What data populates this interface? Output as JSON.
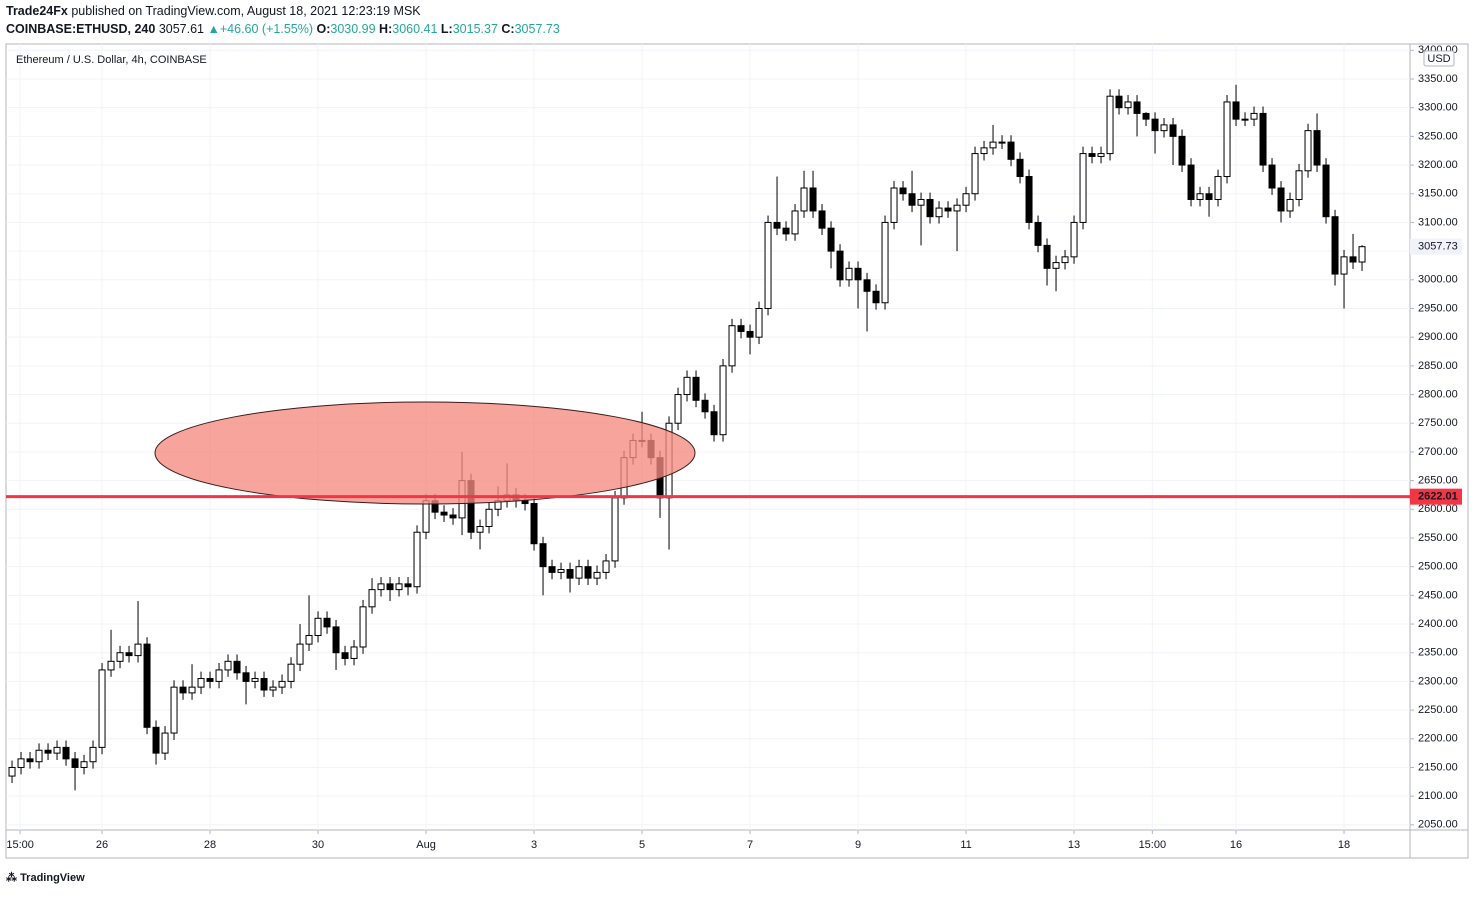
{
  "header": {
    "author": "Trade24Fx",
    "published": "published on TradingView.com, August 18, 2021 12:23:19 MSK",
    "symbol": "COINBASE:ETHUSD, 240",
    "last": "3057.61",
    "arrow": "▲",
    "change": "+46.60 (+1.55%)",
    "o_label": "O:",
    "o": "3030.99",
    "h_label": "H:",
    "h": "3060.41",
    "l_label": "L:",
    "l": "3015.37",
    "c_label": "C:",
    "c": "3057.73"
  },
  "footer": {
    "brand": "TradingView"
  },
  "chart_data": {
    "type": "candlestick",
    "title": "Ethereum / U.S. Dollar, 4h, COINBASE",
    "currency": "USD",
    "up_color": "#ffffff",
    "down_color": "#000000",
    "line_color": "#f23645",
    "grid": true,
    "open": [
      2135,
      2150,
      2165,
      2160,
      2180,
      2175,
      2185,
      2165,
      2150,
      2160,
      2185,
      2320,
      2335,
      2350,
      2345,
      2365,
      2220,
      2175,
      2210,
      2290,
      2280,
      2290,
      2305,
      2300,
      2320,
      2335,
      2315,
      2300,
      2305,
      2285,
      2290,
      2300,
      2330,
      2365,
      2380,
      2410,
      2395,
      2350,
      2340,
      2360,
      2430,
      2460,
      2470,
      2460,
      2470,
      2465,
      2560,
      2615,
      2595,
      2590,
      2585,
      2650,
      2560,
      2570,
      2600,
      2615,
      2625,
      2615,
      2610,
      2540,
      2500,
      2490,
      2495,
      2480,
      2500,
      2480,
      2490,
      2510,
      2620,
      2690,
      2720,
      2720,
      2690,
      2620,
      2750,
      2800,
      2830,
      2790,
      2770,
      2730,
      2850,
      2920,
      2910,
      2900,
      2950,
      3100,
      3090,
      3080,
      3120,
      3160,
      3120,
      3090,
      3050,
      3000,
      3020,
      3000,
      2980,
      2960,
      3100,
      3160,
      3150,
      3130,
      3140,
      3110,
      3125,
      3120,
      3130,
      3150,
      3220,
      3230,
      3240,
      3240,
      3210,
      3180,
      3100,
      3060,
      3020,
      3030,
      3040,
      3100,
      3220,
      3215,
      3220,
      3320,
      3300,
      3310,
      3290,
      3280,
      3260,
      3270,
      3250,
      3200,
      3140,
      3150,
      3140,
      3180,
      3310,
      3280,
      3280,
      3290,
      3200,
      3160,
      3120,
      3140,
      3190,
      3260,
      3200,
      3110,
      3010,
      3040,
      3030.99
    ],
    "high": [
      2162,
      2177,
      2177,
      2192,
      2192,
      2197,
      2197,
      2177,
      2172,
      2197,
      2332,
      2390,
      2362,
      2362,
      2440,
      2377,
      2232,
      2222,
      2302,
      2302,
      2330,
      2317,
      2317,
      2332,
      2347,
      2347,
      2327,
      2317,
      2317,
      2302,
      2312,
      2342,
      2400,
      2450,
      2422,
      2422,
      2407,
      2362,
      2372,
      2442,
      2480,
      2482,
      2482,
      2482,
      2482,
      2572,
      2627,
      2627,
      2607,
      2602,
      2700,
      2662,
      2582,
      2612,
      2640,
      2680,
      2637,
      2627,
      2622,
      2552,
      2512,
      2507,
      2507,
      2512,
      2512,
      2502,
      2522,
      2632,
      2702,
      2732,
      2770,
      2732,
      2702,
      2762,
      2812,
      2842,
      2842,
      2802,
      2782,
      2862,
      2932,
      2932,
      2922,
      2962,
      3112,
      3180,
      3102,
      3132,
      3190,
      3190,
      3132,
      3102,
      3062,
      3032,
      3032,
      3012,
      2992,
      3112,
      3172,
      3172,
      3190,
      3152,
      3152,
      3137,
      3137,
      3142,
      3162,
      3232,
      3242,
      3270,
      3252,
      3252,
      3222,
      3192,
      3112,
      3072,
      3042,
      3052,
      3112,
      3232,
      3232,
      3232,
      3332,
      3332,
      3322,
      3322,
      3292,
      3292,
      3282,
      3282,
      3262,
      3212,
      3162,
      3162,
      3192,
      3322,
      3340,
      3292,
      3302,
      3302,
      3212,
      3172,
      3152,
      3202,
      3272,
      3290,
      3212,
      3122,
      3052,
      3080,
      3060.41
    ],
    "low": [
      2123,
      2138,
      2148,
      2148,
      2163,
      2163,
      2153,
      2110,
      2138,
      2148,
      2173,
      2308,
      2323,
      2333,
      2333,
      2208,
      2155,
      2163,
      2198,
      2268,
      2268,
      2278,
      2288,
      2288,
      2308,
      2303,
      2260,
      2288,
      2273,
      2273,
      2278,
      2288,
      2318,
      2353,
      2368,
      2383,
      2320,
      2328,
      2328,
      2348,
      2418,
      2448,
      2440,
      2448,
      2450,
      2453,
      2548,
      2583,
      2578,
      2573,
      2555,
      2548,
      2530,
      2558,
      2588,
      2603,
      2603,
      2598,
      2528,
      2450,
      2478,
      2478,
      2455,
      2468,
      2468,
      2468,
      2478,
      2498,
      2608,
      2678,
      2708,
      2678,
      2585,
      2530,
      2738,
      2788,
      2778,
      2758,
      2718,
      2718,
      2838,
      2898,
      2870,
      2888,
      2938,
      3078,
      3068,
      3068,
      3108,
      3108,
      3078,
      3020,
      2988,
      2988,
      2950,
      2910,
      2948,
      2948,
      3088,
      3138,
      3118,
      3060,
      3098,
      3098,
      3108,
      3050,
      3118,
      3138,
      3208,
      3218,
      3228,
      3198,
      3168,
      3088,
      3048,
      2990,
      2980,
      3018,
      3028,
      3088,
      3203,
      3203,
      3208,
      3288,
      3288,
      3250,
      3268,
      3220,
      3248,
      3200,
      3188,
      3128,
      3128,
      3110,
      3128,
      3168,
      3268,
      3268,
      3268,
      3188,
      3148,
      3100,
      3108,
      3128,
      3178,
      3188,
      3098,
      2990,
      2950,
      3019,
      3015.37
    ],
    "close": [
      2150,
      2165,
      2160,
      2180,
      2175,
      2185,
      2165,
      2150,
      2160,
      2185,
      2320,
      2335,
      2350,
      2345,
      2365,
      2220,
      2175,
      2210,
      2290,
      2280,
      2290,
      2305,
      2300,
      2320,
      2335,
      2315,
      2300,
      2305,
      2285,
      2290,
      2300,
      2330,
      2365,
      2380,
      2410,
      2395,
      2350,
      2340,
      2360,
      2430,
      2460,
      2470,
      2460,
      2470,
      2465,
      2560,
      2615,
      2595,
      2590,
      2585,
      2650,
      2560,
      2570,
      2600,
      2615,
      2625,
      2615,
      2610,
      2540,
      2500,
      2490,
      2495,
      2480,
      2500,
      2480,
      2490,
      2510,
      2620,
      2690,
      2720,
      2720,
      2690,
      2620,
      2750,
      2800,
      2830,
      2790,
      2770,
      2730,
      2850,
      2920,
      2910,
      2900,
      2950,
      3100,
      3090,
      3080,
      3120,
      3160,
      3120,
      3090,
      3050,
      3000,
      3020,
      3000,
      2980,
      2960,
      3100,
      3160,
      3150,
      3130,
      3140,
      3110,
      3125,
      3120,
      3130,
      3150,
      3220,
      3230,
      3240,
      3240,
      3210,
      3180,
      3100,
      3060,
      3020,
      3030,
      3040,
      3100,
      3220,
      3215,
      3220,
      3320,
      3300,
      3310,
      3290,
      3280,
      3260,
      3270,
      3250,
      3200,
      3140,
      3150,
      3140,
      3180,
      3310,
      3280,
      3280,
      3290,
      3200,
      3160,
      3120,
      3140,
      3190,
      3260,
      3200,
      3110,
      3010,
      3040,
      3031,
      3057.73
    ],
    "horizontal_line": 2622.01,
    "xlim": [
      -0.67,
      155.33
    ],
    "xticks": [
      {
        "value": 0.9,
        "label": "15:00"
      },
      {
        "value": 10,
        "label": "26"
      },
      {
        "value": 22,
        "label": "28"
      },
      {
        "value": 34,
        "label": "30"
      },
      {
        "value": 46,
        "label": "Aug"
      },
      {
        "value": 58,
        "label": "3"
      },
      {
        "value": 70,
        "label": "5"
      },
      {
        "value": 82,
        "label": "7"
      },
      {
        "value": 94,
        "label": "9"
      },
      {
        "value": 106,
        "label": "11"
      },
      {
        "value": 118,
        "label": "13"
      },
      {
        "value": 126.7,
        "label": "15:00"
      },
      {
        "value": 136,
        "label": "16"
      },
      {
        "value": 148,
        "label": "18"
      }
    ],
    "ylim": [
      2041,
      3411
    ],
    "yticks": [
      {
        "value": 2050,
        "label": "2050.00"
      },
      {
        "value": 2100,
        "label": "2100.00"
      },
      {
        "value": 2150,
        "label": "2150.00"
      },
      {
        "value": 2200,
        "label": "2200.00"
      },
      {
        "value": 2250,
        "label": "2250.00"
      },
      {
        "value": 2300,
        "label": "2300.00"
      },
      {
        "value": 2350,
        "label": "2350.00"
      },
      {
        "value": 2400,
        "label": "2400.00"
      },
      {
        "value": 2450,
        "label": "2450.00"
      },
      {
        "value": 2500,
        "label": "2500.00"
      },
      {
        "value": 2550,
        "label": "2550.00"
      },
      {
        "value": 2600,
        "label": "2600.00"
      },
      {
        "value": 2650,
        "label": "2650.00"
      },
      {
        "value": 2700,
        "label": "2700.00"
      },
      {
        "value": 2750,
        "label": "2750.00"
      },
      {
        "value": 2800,
        "label": "2800.00"
      },
      {
        "value": 2850,
        "label": "2850.00"
      },
      {
        "value": 2900,
        "label": "2900.00"
      },
      {
        "value": 2950,
        "label": "2950.00"
      },
      {
        "value": 3000,
        "label": "3000.00"
      },
      {
        "value": 3050,
        "label": "3050.00"
      },
      {
        "value": 3100,
        "label": "3100.00"
      },
      {
        "value": 3150,
        "label": "3150.00"
      },
      {
        "value": 3200,
        "label": "3200.00"
      },
      {
        "value": 3250,
        "label": "3250.00"
      },
      {
        "value": 3300,
        "label": "3300.00"
      },
      {
        "value": 3350,
        "label": "3350.00"
      },
      {
        "value": 3400,
        "label": "3400.00"
      }
    ]
  }
}
